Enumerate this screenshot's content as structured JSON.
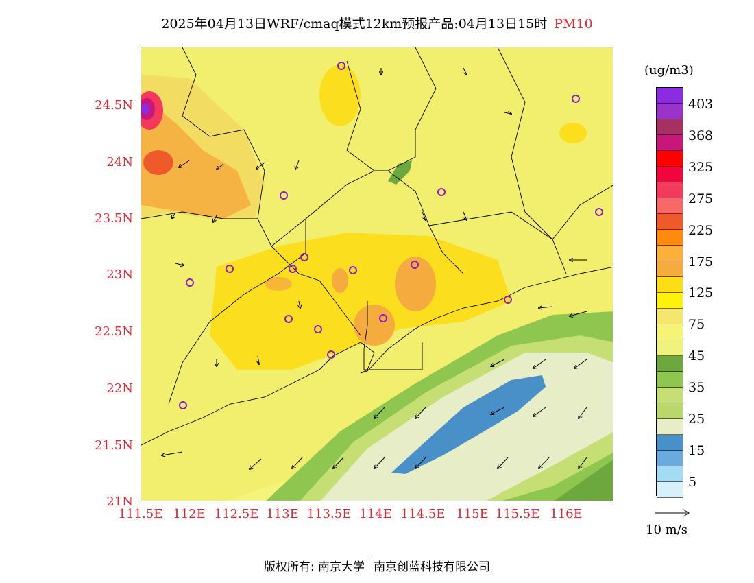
{
  "header": {
    "title": "2025年04月13日WRF/cmaq模式12km预报产品:04月13日15时",
    "pollutant": "PM10"
  },
  "map": {
    "lat_labels": [
      "24.5N",
      "24N",
      "23.5N",
      "23N",
      "22.5N",
      "22N",
      "21.5N",
      "21N"
    ],
    "lon_labels": [
      "111.5E",
      "112E",
      "112.5E",
      "113E",
      "113.5E",
      "114E",
      "114.5E",
      "115E",
      "115.5E",
      "116E"
    ],
    "station_marker_color": "#8a1fc7",
    "boundary_color": "#000000"
  },
  "legend": {
    "unit": "(ug/m3)",
    "colors": [
      "#8b2be2",
      "#9a33cc",
      "#a63062",
      "#c8177a",
      "#ff0000",
      "#f2053f",
      "#f43a5c",
      "#f76866",
      "#ef5a2a",
      "#ff8a0b",
      "#fbb03b",
      "#f6ab3e",
      "#fcdd16",
      "#fff20a",
      "#f5e66d",
      "#f6f475",
      "#f0f27e",
      "#6ca83d",
      "#8ec64f",
      "#c5df75",
      "#b9d76b",
      "#e6edc7",
      "#4a90c8",
      "#6aabdf",
      "#a4dcf5",
      "#d7f0fa",
      "#ffffff"
    ],
    "labels": [
      "403",
      "368",
      "325",
      "275",
      "225",
      "175",
      "125",
      "75",
      "45",
      "35",
      "25",
      "15",
      "5"
    ]
  },
  "vector_key": {
    "label": "10 m/s"
  },
  "footer": {
    "copyright_left": "版权所有: 南京大学",
    "copyright_right": "南京创蓝科技有限公司"
  }
}
